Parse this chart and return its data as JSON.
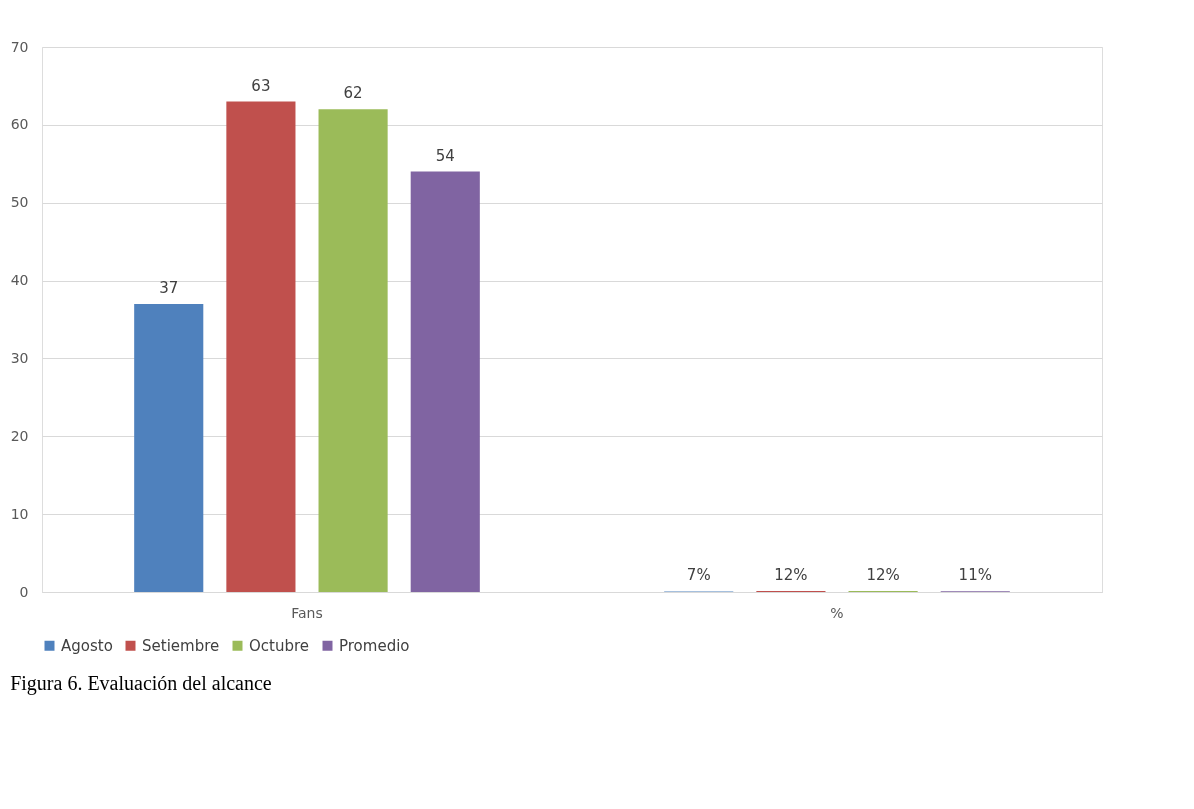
{
  "chart_data": {
    "type": "bar",
    "categories": [
      "Fans",
      "%"
    ],
    "series": [
      {
        "name": "Agosto",
        "color": "#4f81bd",
        "values": [
          37,
          0.07
        ],
        "value_labels": [
          "37",
          "7%"
        ]
      },
      {
        "name": "Setiembre",
        "color": "#c0504d",
        "values": [
          63,
          0.12
        ],
        "value_labels": [
          "63",
          "12%"
        ]
      },
      {
        "name": "Octubre",
        "color": "#9bbb59",
        "values": [
          62,
          0.12
        ],
        "value_labels": [
          "62",
          "12%"
        ]
      },
      {
        "name": "Promedio",
        "color": "#8064a2",
        "values": [
          54,
          0.11
        ],
        "value_labels": [
          "54",
          "11%"
        ]
      }
    ],
    "ylim": [
      0,
      70
    ],
    "yticks": [
      0,
      10,
      20,
      30,
      40,
      50,
      60,
      70
    ],
    "grid": "y",
    "legend": "bottom",
    "annotations": [
      "Figura 6. Evaluación del alcance"
    ]
  }
}
